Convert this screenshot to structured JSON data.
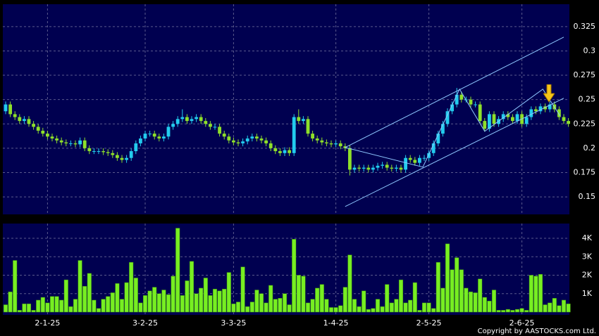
{
  "chart_data": {
    "type": "candlestick",
    "categories": [
      null,
      null,
      null,
      null,
      null,
      null,
      null,
      null,
      null,
      "2-1-25",
      null,
      null,
      null,
      null,
      null,
      null,
      null,
      null,
      null,
      null,
      null,
      null,
      null,
      null,
      null,
      null,
      null,
      null,
      null,
      null,
      "3-2-25",
      null,
      null,
      null,
      null,
      null,
      null,
      null,
      null,
      null,
      null,
      null,
      null,
      null,
      null,
      null,
      null,
      null,
      null,
      "3-3-25",
      null,
      null,
      null,
      null,
      null,
      null,
      null,
      null,
      null,
      null,
      null,
      null,
      null,
      null,
      null,
      null,
      null,
      null,
      null,
      null,
      null,
      "1-4-25",
      null,
      null,
      null,
      null,
      null,
      null,
      null,
      null,
      null,
      null,
      null,
      null,
      null,
      null,
      null,
      null,
      null,
      null,
      null,
      "2-5-25",
      null,
      null,
      null,
      null,
      null,
      null,
      null,
      null,
      null,
      null,
      null,
      null,
      null,
      null,
      null,
      null,
      null,
      null,
      null,
      "2-6-25",
      null,
      null,
      null,
      null,
      null,
      null,
      null,
      null,
      null,
      null
    ],
    "open": [
      0.238,
      0.245,
      0.235,
      0.232,
      0.228,
      0.23,
      0.225,
      0.222,
      0.218,
      0.215,
      0.212,
      0.21,
      0.208,
      0.206,
      0.205,
      0.205,
      0.204,
      0.208,
      0.2,
      0.197,
      0.197,
      0.197,
      0.196,
      0.195,
      0.193,
      0.19,
      0.188,
      0.19,
      0.197,
      0.205,
      0.21,
      0.215,
      0.215,
      0.212,
      0.21,
      0.212,
      0.222,
      0.225,
      0.23,
      0.232,
      0.228,
      0.23,
      0.232,
      0.228,
      0.225,
      0.222,
      0.222,
      0.215,
      0.212,
      0.208,
      0.206,
      0.205,
      0.207,
      0.21,
      0.212,
      0.21,
      0.208,
      0.205,
      0.2,
      0.197,
      0.195,
      0.198,
      0.195,
      0.232,
      0.228,
      0.23,
      0.215,
      0.21,
      0.208,
      0.206,
      0.205,
      0.204,
      0.205,
      0.202,
      0.2,
      0.178,
      0.18,
      0.179,
      0.18,
      0.178,
      0.18,
      0.182,
      0.183,
      0.18,
      0.179,
      0.18,
      0.178,
      0.19,
      0.188,
      0.185,
      0.19,
      0.19,
      0.195,
      0.205,
      0.215,
      0.225,
      0.238,
      0.245,
      0.255,
      0.25,
      0.25,
      0.245,
      0.245,
      0.228,
      0.22,
      0.235,
      0.225,
      0.23,
      0.235,
      0.232,
      0.228,
      0.235,
      0.225,
      0.232,
      0.24,
      0.238,
      0.243,
      0.24,
      0.245,
      0.24,
      0.232,
      0.228
    ],
    "high": [
      0.248,
      0.248,
      0.238,
      0.235,
      0.233,
      0.233,
      0.228,
      0.225,
      0.221,
      0.218,
      0.215,
      0.213,
      0.211,
      0.209,
      0.208,
      0.208,
      0.211,
      0.211,
      0.203,
      0.2,
      0.2,
      0.2,
      0.199,
      0.198,
      0.196,
      0.193,
      0.193,
      0.2,
      0.208,
      0.213,
      0.218,
      0.218,
      0.218,
      0.215,
      0.215,
      0.225,
      0.228,
      0.233,
      0.24,
      0.235,
      0.233,
      0.235,
      0.235,
      0.231,
      0.228,
      0.225,
      0.225,
      0.218,
      0.215,
      0.211,
      0.209,
      0.21,
      0.213,
      0.215,
      0.215,
      0.213,
      0.211,
      0.208,
      0.203,
      0.2,
      0.201,
      0.201,
      0.235,
      0.24,
      0.233,
      0.233,
      0.218,
      0.213,
      0.211,
      0.209,
      0.208,
      0.208,
      0.208,
      0.205,
      0.203,
      0.183,
      0.183,
      0.183,
      0.183,
      0.183,
      0.185,
      0.186,
      0.186,
      0.183,
      0.183,
      0.183,
      0.193,
      0.193,
      0.191,
      0.193,
      0.193,
      0.198,
      0.208,
      0.218,
      0.228,
      0.241,
      0.248,
      0.262,
      0.258,
      0.253,
      0.253,
      0.248,
      0.248,
      0.231,
      0.238,
      0.238,
      0.233,
      0.238,
      0.238,
      0.235,
      0.238,
      0.238,
      0.235,
      0.243,
      0.243,
      0.246,
      0.246,
      0.248,
      0.248,
      0.243,
      0.235,
      0.231
    ],
    "low": [
      0.235,
      0.232,
      0.229,
      0.225,
      0.225,
      0.222,
      0.219,
      0.215,
      0.212,
      0.209,
      0.207,
      0.205,
      0.203,
      0.202,
      0.202,
      0.201,
      0.201,
      0.197,
      0.194,
      0.194,
      0.194,
      0.193,
      0.192,
      0.19,
      0.187,
      0.185,
      0.185,
      0.187,
      0.194,
      0.202,
      0.207,
      0.212,
      0.209,
      0.207,
      0.207,
      0.209,
      0.219,
      0.222,
      0.227,
      0.225,
      0.225,
      0.227,
      0.225,
      0.222,
      0.219,
      0.219,
      0.212,
      0.209,
      0.205,
      0.203,
      0.202,
      0.202,
      0.204,
      0.207,
      0.207,
      0.205,
      0.202,
      0.197,
      0.194,
      0.192,
      0.192,
      0.192,
      0.192,
      0.225,
      0.225,
      0.212,
      0.207,
      0.205,
      0.203,
      0.202,
      0.201,
      0.201,
      0.199,
      0.197,
      0.172,
      0.175,
      0.176,
      0.176,
      0.175,
      0.175,
      0.177,
      0.179,
      0.177,
      0.176,
      0.176,
      0.175,
      0.175,
      0.185,
      0.182,
      0.182,
      0.187,
      0.187,
      0.192,
      0.202,
      0.212,
      0.222,
      0.235,
      0.242,
      0.247,
      0.247,
      0.242,
      0.242,
      0.225,
      0.217,
      0.217,
      0.222,
      0.222,
      0.227,
      0.229,
      0.225,
      0.225,
      0.222,
      0.222,
      0.229,
      0.235,
      0.235,
      0.237,
      0.237,
      0.237,
      0.229,
      0.225,
      0.222
    ],
    "close": [
      0.245,
      0.235,
      0.232,
      0.228,
      0.23,
      0.225,
      0.222,
      0.218,
      0.215,
      0.212,
      0.21,
      0.208,
      0.206,
      0.205,
      0.205,
      0.204,
      0.208,
      0.2,
      0.197,
      0.197,
      0.197,
      0.196,
      0.195,
      0.193,
      0.19,
      0.188,
      0.19,
      0.197,
      0.205,
      0.21,
      0.215,
      0.215,
      0.212,
      0.21,
      0.212,
      0.222,
      0.225,
      0.23,
      0.232,
      0.228,
      0.23,
      0.232,
      0.228,
      0.225,
      0.222,
      0.222,
      0.215,
      0.212,
      0.208,
      0.206,
      0.205,
      0.207,
      0.21,
      0.212,
      0.21,
      0.208,
      0.205,
      0.2,
      0.197,
      0.195,
      0.198,
      0.195,
      0.232,
      0.228,
      0.23,
      0.215,
      0.21,
      0.208,
      0.206,
      0.205,
      0.204,
      0.205,
      0.202,
      0.2,
      0.178,
      0.18,
      0.179,
      0.18,
      0.178,
      0.18,
      0.182,
      0.183,
      0.18,
      0.179,
      0.18,
      0.178,
      0.19,
      0.188,
      0.185,
      0.19,
      0.19,
      0.195,
      0.205,
      0.215,
      0.225,
      0.238,
      0.245,
      0.255,
      0.25,
      0.25,
      0.245,
      0.245,
      0.228,
      0.22,
      0.235,
      0.225,
      0.23,
      0.235,
      0.232,
      0.228,
      0.235,
      0.225,
      0.232,
      0.24,
      0.238,
      0.243,
      0.24,
      0.245,
      0.24,
      0.232,
      0.228,
      0.225
    ],
    "up_color": "#22ccee",
    "down_color": "#8ee02a",
    "ylim": [
      0.132,
      0.348
    ],
    "yticks": [
      0.15,
      0.175,
      0.2,
      0.225,
      0.25,
      0.275,
      0.3,
      0.325
    ],
    "grid": true,
    "trend_color": "#8fc8ff",
    "trend_lines": [
      {
        "x": [
          73,
          120
        ],
        "y": [
          0.1401,
          0.2514
        ]
      },
      {
        "x": [
          73,
          120
        ],
        "y": [
          0.2008,
          0.3142
        ]
      },
      {
        "x": [
          73,
          89.7,
          97.6,
          103,
          115.5,
          119.2
        ],
        "y": [
          0.2008,
          0.1806,
          0.2607,
          0.2174,
          0.2607,
          0.2333
        ]
      }
    ],
    "volume": {
      "color": "#77ee22",
      "values": [
        400,
        1100,
        2800,
        100,
        450,
        450,
        100,
        650,
        800,
        500,
        850,
        850,
        650,
        1750,
        300,
        700,
        2800,
        1400,
        2100,
        650,
        200,
        700,
        850,
        1050,
        1550,
        700,
        1600,
        2700,
        1850,
        500,
        900,
        1150,
        1350,
        1000,
        1200,
        950,
        1950,
        4550,
        900,
        1700,
        2750,
        1000,
        1300,
        1850,
        900,
        1250,
        1150,
        1250,
        2150,
        450,
        550,
        2450,
        300,
        550,
        1200,
        1000,
        500,
        1450,
        700,
        750,
        1000,
        400,
        3950,
        2000,
        1950,
        500,
        700,
        1300,
        1500,
        700,
        250,
        250,
        350,
        1350,
        3100,
        700,
        300,
        1150,
        150,
        200,
        700,
        300,
        1500,
        500,
        700,
        1750,
        500,
        650,
        1600,
        100,
        500,
        500,
        200,
        2700,
        1300,
        3700,
        2300,
        2950,
        2300,
        1300,
        1100,
        1050,
        1800,
        800,
        600,
        1200,
        100,
        100,
        150,
        100,
        150,
        200,
        100,
        2000,
        1950,
        2050,
        400,
        500,
        750,
        350,
        650,
        450
      ],
      "ylim": [
        0,
        4800
      ],
      "yticks": [
        {
          "value": 1000,
          "label": "1K"
        },
        {
          "value": 2000,
          "label": "2K"
        },
        {
          "value": 3000,
          "label": "3K"
        },
        {
          "value": 4000,
          "label": "4K"
        }
      ]
    },
    "copyright": "Copyright by AASTOCKS.com Ltd."
  }
}
